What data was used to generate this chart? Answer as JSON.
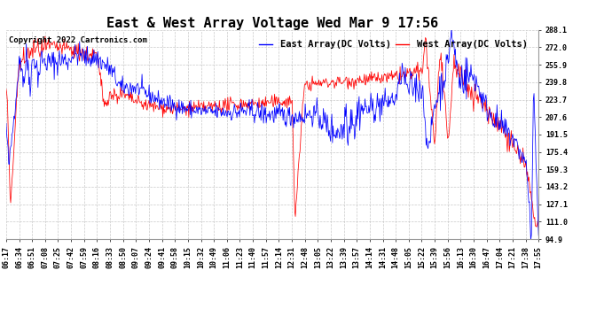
{
  "title": "East & West Array Voltage Wed Mar 9 17:56",
  "copyright": "Copyright 2022 Cartronics.com",
  "legend_east": "East Array(DC Volts)",
  "legend_west": "West Array(DC Volts)",
  "east_color": "#0000ff",
  "west_color": "#ff0000",
  "background_color": "#ffffff",
  "grid_color": "#bbbbbb",
  "ylim": [
    94.9,
    288.1
  ],
  "yticks": [
    94.9,
    111.0,
    127.1,
    143.2,
    159.3,
    175.4,
    191.5,
    207.6,
    223.7,
    239.8,
    255.9,
    272.0,
    288.1
  ],
  "xtick_labels": [
    "06:17",
    "06:34",
    "06:51",
    "07:08",
    "07:25",
    "07:42",
    "07:59",
    "08:16",
    "08:33",
    "08:50",
    "09:07",
    "09:24",
    "09:41",
    "09:58",
    "10:15",
    "10:32",
    "10:49",
    "11:06",
    "11:23",
    "11:40",
    "11:57",
    "12:14",
    "12:31",
    "12:48",
    "13:05",
    "13:22",
    "13:39",
    "13:57",
    "14:14",
    "14:31",
    "14:48",
    "15:05",
    "15:22",
    "15:39",
    "15:56",
    "16:13",
    "16:30",
    "16:47",
    "17:04",
    "17:21",
    "17:38",
    "17:55"
  ],
  "fig_width": 6.9,
  "fig_height": 3.75,
  "dpi": 100,
  "title_fontsize": 11,
  "tick_fontsize": 6,
  "copyright_fontsize": 6.5,
  "legend_fontsize": 7.5
}
